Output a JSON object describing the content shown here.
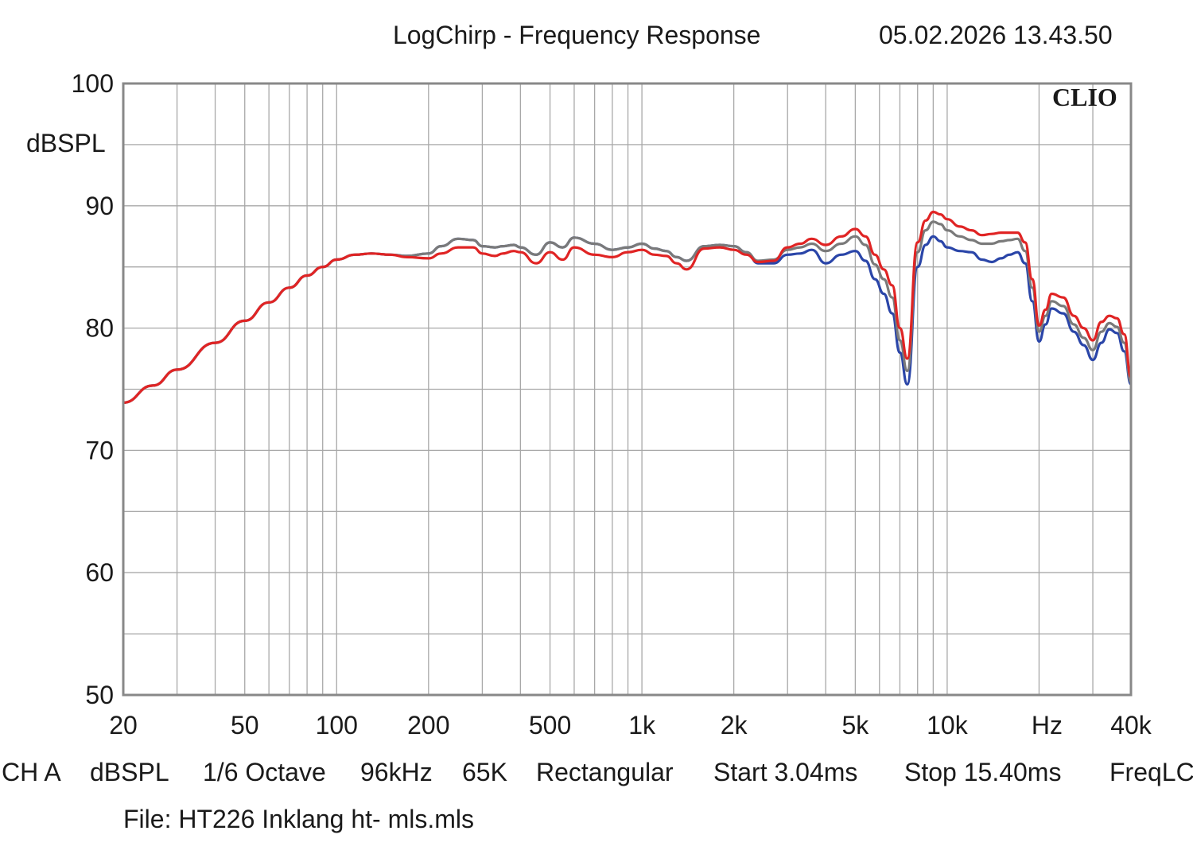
{
  "chart_data": {
    "type": "line",
    "title": "LogChirp - Frequency Response",
    "timestamp": "05.02.2026 13.43.50",
    "logo": "CLIO",
    "ylabel": "dBSPL",
    "xlabel_unit": "Hz",
    "xscale": "log",
    "xlim": [
      20,
      40000
    ],
    "ylim": [
      50,
      100
    ],
    "x_tick_labels": [
      {
        "value": 20,
        "label": "20"
      },
      {
        "value": 50,
        "label": "50"
      },
      {
        "value": 100,
        "label": "100"
      },
      {
        "value": 200,
        "label": "200"
      },
      {
        "value": 500,
        "label": "500"
      },
      {
        "value": 1000,
        "label": "1k"
      },
      {
        "value": 2000,
        "label": "2k"
      },
      {
        "value": 5000,
        "label": "5k"
      },
      {
        "value": 10000,
        "label": "10k"
      },
      {
        "value": 40000,
        "label": "40k"
      }
    ],
    "y_tick_labels": [
      {
        "value": 100,
        "label": "100"
      },
      {
        "value": 90,
        "label": "90"
      },
      {
        "value": 80,
        "label": "80"
      },
      {
        "value": 70,
        "label": "70"
      },
      {
        "value": 60,
        "label": "60"
      },
      {
        "value": 50,
        "label": "50"
      }
    ],
    "series": [
      {
        "name": "red",
        "color": "#e02424",
        "x": [
          20,
          25,
          30,
          40,
          50,
          60,
          70,
          80,
          90,
          100,
          115,
          130,
          150,
          170,
          200,
          220,
          250,
          280,
          300,
          330,
          350,
          380,
          400,
          450,
          500,
          550,
          600,
          700,
          800,
          900,
          1000,
          1100,
          1200,
          1300,
          1400,
          1600,
          1800,
          2000,
          2200,
          2400,
          2700,
          3000,
          3300,
          3600,
          4000,
          4500,
          5000,
          5400,
          5800,
          6200,
          6600,
          7000,
          7400,
          8000,
          8500,
          9000,
          9500,
          10000,
          11000,
          12000,
          13000,
          14000,
          15000,
          16000,
          17000,
          18000,
          19000,
          20000,
          21000,
          22000,
          24000,
          26000,
          28000,
          30000,
          32000,
          34000,
          36000,
          38000,
          40000
        ],
        "y": [
          73.9,
          75.3,
          76.6,
          78.8,
          80.6,
          82.1,
          83.3,
          84.3,
          85.0,
          85.6,
          86.0,
          86.1,
          86.0,
          85.8,
          85.7,
          86.1,
          86.6,
          86.6,
          86.1,
          85.9,
          86.1,
          86.3,
          86.2,
          85.3,
          86.2,
          85.6,
          86.6,
          86.0,
          85.8,
          86.2,
          86.4,
          86.0,
          85.9,
          85.3,
          84.8,
          86.5,
          86.6,
          86.4,
          86.0,
          85.4,
          85.5,
          86.6,
          86.9,
          87.3,
          86.8,
          87.5,
          88.1,
          87.5,
          86.0,
          84.8,
          83.5,
          80.0,
          77.5,
          87.0,
          88.8,
          89.5,
          89.3,
          88.9,
          88.3,
          88.0,
          87.6,
          87.7,
          87.8,
          87.8,
          87.8,
          87.0,
          84.0,
          80.2,
          81.5,
          82.8,
          82.5,
          81.0,
          80.0,
          79.0,
          80.5,
          81.0,
          80.8,
          79.5,
          76.0
        ]
      },
      {
        "name": "gray",
        "color": "#7a7a7a",
        "x": [
          20,
          25,
          30,
          40,
          50,
          60,
          70,
          80,
          90,
          100,
          115,
          130,
          150,
          170,
          200,
          220,
          250,
          280,
          300,
          330,
          350,
          380,
          400,
          450,
          500,
          550,
          600,
          700,
          800,
          900,
          1000,
          1100,
          1200,
          1300,
          1400,
          1600,
          1800,
          2000,
          2200,
          2400,
          2700,
          3000,
          3300,
          3600,
          4000,
          4500,
          5000,
          5400,
          5800,
          6200,
          6600,
          7000,
          7400,
          8000,
          8500,
          9000,
          9500,
          10000,
          11000,
          12000,
          13000,
          14000,
          15000,
          16000,
          17000,
          18000,
          19000,
          20000,
          21000,
          22000,
          24000,
          26000,
          28000,
          30000,
          32000,
          34000,
          36000,
          38000,
          40000
        ],
        "y": [
          73.9,
          75.3,
          76.6,
          78.8,
          80.6,
          82.1,
          83.3,
          84.3,
          85.0,
          85.6,
          86.0,
          86.1,
          86.0,
          85.9,
          86.1,
          86.7,
          87.3,
          87.2,
          86.7,
          86.6,
          86.7,
          86.8,
          86.6,
          86.0,
          87.0,
          86.6,
          87.4,
          86.9,
          86.4,
          86.6,
          86.9,
          86.5,
          86.3,
          85.8,
          85.5,
          86.7,
          86.8,
          86.7,
          86.2,
          85.5,
          85.6,
          86.4,
          86.6,
          86.9,
          86.3,
          86.9,
          87.5,
          86.8,
          85.2,
          84.0,
          82.5,
          79.0,
          76.5,
          86.2,
          88.0,
          88.7,
          88.5,
          88.0,
          87.5,
          87.2,
          86.9,
          86.9,
          87.1,
          87.2,
          87.3,
          86.3,
          83.3,
          79.7,
          81.0,
          82.2,
          81.8,
          80.3,
          79.2,
          78.2,
          79.7,
          80.4,
          80.1,
          78.8,
          75.6
        ]
      },
      {
        "name": "blue",
        "color": "#2a45a8",
        "x": [
          20,
          25,
          30,
          40,
          50,
          60,
          70,
          80,
          90,
          100,
          115,
          130,
          150,
          170,
          200,
          220,
          250,
          280,
          300,
          330,
          350,
          380,
          400,
          450,
          500,
          550,
          600,
          700,
          800,
          900,
          1000,
          1100,
          1200,
          1300,
          1400,
          1600,
          1800,
          2000,
          2200,
          2400,
          2700,
          3000,
          3300,
          3600,
          4000,
          4500,
          5000,
          5400,
          5800,
          6200,
          6600,
          7000,
          7400,
          8000,
          8500,
          9000,
          9500,
          10000,
          11000,
          12000,
          13000,
          14000,
          15000,
          16000,
          17000,
          18000,
          19000,
          20000,
          21000,
          22000,
          24000,
          26000,
          28000,
          30000,
          32000,
          34000,
          36000,
          38000,
          40000
        ],
        "y": [
          73.9,
          75.3,
          76.6,
          78.8,
          80.6,
          82.1,
          83.3,
          84.3,
          85.0,
          85.6,
          86.0,
          86.1,
          86.0,
          85.9,
          86.1,
          86.7,
          87.3,
          87.2,
          86.7,
          86.6,
          86.7,
          86.8,
          86.6,
          86.0,
          87.0,
          86.6,
          87.4,
          86.9,
          86.4,
          86.6,
          86.9,
          86.5,
          86.3,
          85.8,
          85.5,
          86.7,
          86.8,
          86.7,
          86.2,
          85.3,
          85.3,
          86.0,
          86.1,
          86.4,
          85.3,
          86.0,
          86.3,
          85.5,
          84.0,
          82.8,
          81.2,
          78.0,
          75.4,
          85.0,
          86.8,
          87.5,
          87.1,
          86.6,
          86.3,
          86.2,
          85.6,
          85.4,
          85.7,
          86.0,
          86.2,
          85.3,
          82.2,
          78.9,
          80.3,
          81.6,
          81.2,
          79.7,
          78.6,
          77.4,
          78.8,
          79.9,
          79.6,
          78.1,
          75.4
        ]
      }
    ],
    "legend": "none",
    "grid": true
  },
  "footer": {
    "items": [
      "CH A",
      "dBSPL",
      "1/6 Octave",
      "96kHz",
      "65K",
      "Rectangular",
      "Start 3.04ms",
      "Stop 15.40ms",
      "FreqLC"
    ],
    "file": "File: HT226 Inklang ht- mls.mls"
  }
}
